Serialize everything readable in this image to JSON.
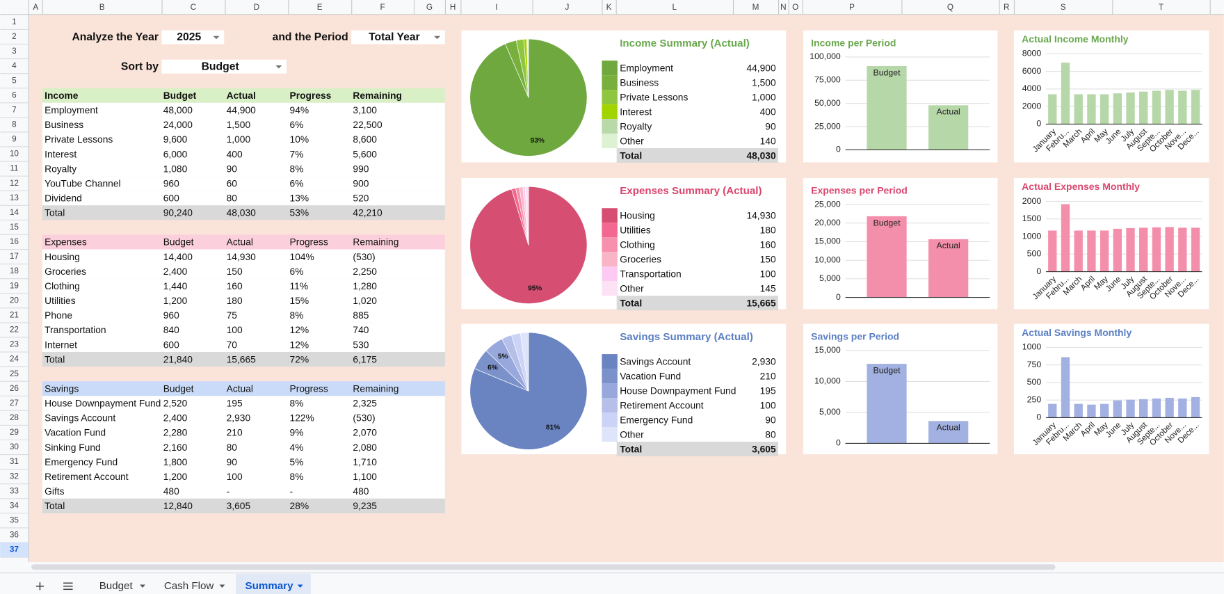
{
  "columns": [
    "A",
    "B",
    "C",
    "D",
    "E",
    "F",
    "G",
    "H",
    "I",
    "J",
    "K",
    "L",
    "M",
    "N",
    "O",
    "P",
    "Q",
    "R",
    "S",
    "T"
  ],
  "rows": [
    1,
    2,
    3,
    4,
    5,
    6,
    7,
    8,
    9,
    10,
    11,
    12,
    13,
    14,
    15,
    16,
    17,
    18,
    19,
    20,
    21,
    22,
    23,
    24,
    25,
    26,
    27,
    28,
    29,
    30,
    31,
    32,
    33,
    34,
    35,
    36,
    37
  ],
  "controls": {
    "year_label": "Analyze the Year",
    "year": "2025",
    "period_label": "and the Period",
    "period": "Total Year",
    "sort_label": "Sort by",
    "sort": "Budget"
  },
  "tables": [
    {
      "header": [
        "Income",
        "Budget",
        "Actual",
        "Progress",
        "Remaining"
      ],
      "header_color": "#d9f0c6",
      "header_bold": true,
      "rows": [
        [
          "Employment",
          "48,000",
          "44,900",
          "94%",
          "3,100"
        ],
        [
          "Business",
          "24,000",
          "1,500",
          "6%",
          "22,500"
        ],
        [
          "Private Lessons",
          "9,600",
          "1,000",
          "10%",
          "8,600"
        ],
        [
          "Interest",
          "6,000",
          "400",
          "7%",
          "5,600"
        ],
        [
          "Royalty",
          "1,080",
          "90",
          "8%",
          "990"
        ],
        [
          "YouTube Channel",
          "960",
          "60",
          "6%",
          "900"
        ],
        [
          "Dividend",
          "600",
          "80",
          "13%",
          "520"
        ]
      ],
      "total": [
        "Total",
        "90,240",
        "48,030",
        "53%",
        "42,210"
      ]
    },
    {
      "header": [
        "Expenses",
        "Budget",
        "Actual",
        "Progress",
        "Remaining"
      ],
      "header_color": "#fccfdc",
      "header_bold": false,
      "rows": [
        [
          "Housing",
          "14,400",
          "14,930",
          "104%",
          "(530)"
        ],
        [
          "Groceries",
          "2,400",
          "150",
          "6%",
          "2,250"
        ],
        [
          "Clothing",
          "1,440",
          "160",
          "11%",
          "1,280"
        ],
        [
          "Utilities",
          "1,200",
          "180",
          "15%",
          "1,020"
        ],
        [
          "Phone",
          "960",
          "75",
          "8%",
          "885"
        ],
        [
          "Transportation",
          "840",
          "100",
          "12%",
          "740"
        ],
        [
          "Internet",
          "600",
          "70",
          "12%",
          "530"
        ]
      ],
      "total": [
        "Total",
        "21,840",
        "15,665",
        "72%",
        "6,175"
      ]
    },
    {
      "header": [
        "Savings",
        "Budget",
        "Actual",
        "Progress",
        "Remaining"
      ],
      "header_color": "#c9dbf9",
      "header_bold": false,
      "rows": [
        [
          "House Downpayment Fund",
          "2,520",
          "195",
          "8%",
          "2,325"
        ],
        [
          "Savings Account",
          "2,400",
          "2,930",
          "122%",
          "(530)"
        ],
        [
          "Vacation Fund",
          "2,280",
          "210",
          "9%",
          "2,070"
        ],
        [
          "Sinking Fund",
          "2,160",
          "80",
          "4%",
          "2,080"
        ],
        [
          "Emergency Fund",
          "1,800",
          "90",
          "5%",
          "1,710"
        ],
        [
          "Retirement Account",
          "1,200",
          "100",
          "8%",
          "1,100"
        ],
        [
          "Gifts",
          "480",
          "-",
          "-",
          "480"
        ]
      ],
      "total": [
        "Total",
        "12,840",
        "3,605",
        "28%",
        "9,235"
      ]
    }
  ],
  "chart_data": [
    {
      "type": "pie",
      "title": "Income Summary (Actual)",
      "title_color": "#6aa84f",
      "categories": [
        "Employment",
        "Business",
        "Private Lessons",
        "Interest",
        "Royalty",
        "Other"
      ],
      "values": [
        44900,
        1500,
        1000,
        400,
        90,
        140
      ],
      "value_labels": [
        "44,900",
        "1,500",
        "1,000",
        "400",
        "90",
        "140"
      ],
      "percent_labels": [
        "93%",
        null,
        null,
        null,
        null,
        null
      ],
      "colors": [
        "#6ea83e",
        "#79b03d",
        "#8ec63f",
        "#a2d400",
        "#b9d9a9",
        "#dcf2d2"
      ],
      "total_name": "Total",
      "total": {
        "value": 48030,
        "label": "48,030"
      }
    },
    {
      "type": "bar",
      "title": "Income per Period",
      "title_color": "#6aa84f",
      "categories": [
        "Budget",
        "Actual"
      ],
      "values": [
        90240,
        48030
      ],
      "color": "#b6d7a8",
      "ylim": [
        0,
        100000
      ],
      "yticks": [
        0,
        {
          "value": 25000,
          "label": "25,000"
        },
        {
          "value": 50000,
          "label": "50,000"
        },
        {
          "value": 75000,
          "label": "75,000"
        },
        {
          "value": 100000,
          "label": "100,000"
        }
      ],
      "grid": true
    },
    {
      "type": "bar",
      "title": "Actual Income Monthly",
      "title_color": "#6aa84f",
      "categories": [
        "January",
        "Febru...",
        "March",
        "April",
        "May",
        "June",
        "July",
        "August",
        "Septe...",
        "October",
        "Nove...",
        "Dece..."
      ],
      "values": [
        3400,
        7000,
        3400,
        3400,
        3400,
        3500,
        3600,
        3700,
        3800,
        3900,
        3800,
        3900
      ],
      "color": "#b6d7a8",
      "ylim": [
        0,
        8000
      ],
      "yticks": [
        0,
        2000,
        4000,
        6000,
        8000
      ],
      "grid": true
    },
    {
      "type": "pie",
      "title": "Expenses Summary (Actual)",
      "title_color": "#d9466f",
      "categories": [
        "Housing",
        "Utilities",
        "Clothing",
        "Groceries",
        "Transportation",
        "Other"
      ],
      "values": [
        14930,
        180,
        160,
        150,
        100,
        145
      ],
      "value_labels": [
        "14,930",
        "180",
        "160",
        "150",
        "100",
        "145"
      ],
      "percent_labels": [
        "95%",
        null,
        null,
        null,
        null,
        null
      ],
      "colors": [
        "#d64f73",
        "#f26890",
        "#f690ac",
        "#f9b5c6",
        "#fccaf2",
        "#fde1f5"
      ],
      "total_name": "Total",
      "total": {
        "value": 15665,
        "label": "15,665"
      }
    },
    {
      "type": "bar",
      "title": "Expenses per Period",
      "title_color": "#d9466f",
      "categories": [
        "Budget",
        "Actual"
      ],
      "values": [
        21840,
        15665
      ],
      "color": "#f48fab",
      "ylim": [
        0,
        25000
      ],
      "yticks": [
        0,
        {
          "value": 5000,
          "label": "5,000"
        },
        {
          "value": 10000,
          "label": "10,000"
        },
        {
          "value": 15000,
          "label": "15,000"
        },
        {
          "value": 20000,
          "label": "20,000"
        },
        {
          "value": 25000,
          "label": "25,000"
        }
      ],
      "grid": true
    },
    {
      "type": "bar",
      "title": "Actual Expenses Monthly",
      "title_color": "#d9466f",
      "categories": [
        "January",
        "Febru...",
        "March",
        "April",
        "May",
        "June",
        "July",
        "August",
        "Septe...",
        "October",
        "Nove...",
        "Dece..."
      ],
      "values": [
        1170,
        1920,
        1170,
        1170,
        1170,
        1220,
        1240,
        1250,
        1260,
        1270,
        1250,
        1250
      ],
      "color": "#f48fab",
      "ylim": [
        0,
        2000
      ],
      "yticks": [
        0,
        500,
        1000,
        1500,
        2000
      ],
      "grid": true
    },
    {
      "type": "pie",
      "title": "Savings Summary (Actual)",
      "title_color": "#5b7fc4",
      "categories": [
        "Savings Account",
        "Vacation Fund",
        "House Downpayment Fund",
        "Retirement Account",
        "Emergency Fund",
        "Other"
      ],
      "values": [
        2930,
        210,
        195,
        100,
        90,
        80
      ],
      "value_labels": [
        "2,930",
        "210",
        "195",
        "100",
        "90",
        "80"
      ],
      "percent_labels": [
        "81%",
        "6%",
        "5%",
        null,
        null,
        null
      ],
      "colors": [
        "#6a84c2",
        "#7b91ca",
        "#98a7dc",
        "#b5bfe8",
        "#cbd3f7",
        "#dee4fa"
      ],
      "total_name": "Total",
      "total": {
        "value": 3605,
        "label": "3,605"
      }
    },
    {
      "type": "bar",
      "title": "Savings per Period",
      "title_color": "#5b7fc4",
      "categories": [
        "Budget",
        "Actual"
      ],
      "values": [
        12840,
        3605
      ],
      "color": "#a2b1e1",
      "ylim": [
        0,
        15000
      ],
      "yticks": [
        0,
        {
          "value": 5000,
          "label": "5,000"
        },
        {
          "value": 10000,
          "label": "10,000"
        },
        {
          "value": 15000,
          "label": "15,000"
        }
      ],
      "grid": true
    },
    {
      "type": "bar",
      "title": "Actual Savings Monthly",
      "title_color": "#5b7fc4",
      "categories": [
        "January",
        "Febru...",
        "March",
        "April",
        "May",
        "June",
        "July",
        "August",
        "Septe...",
        "October",
        "Nove...",
        "Dece..."
      ],
      "values": [
        195,
        860,
        195,
        185,
        195,
        245,
        255,
        262,
        272,
        282,
        272,
        292
      ],
      "color": "#a2b1e1",
      "ylim": [
        0,
        1000
      ],
      "yticks": [
        0,
        250,
        500,
        750,
        1000
      ],
      "grid": true
    }
  ],
  "sheet_tabs": {
    "tabs": [
      "Budget",
      "Cash Flow",
      "Summary"
    ],
    "active": 2
  }
}
